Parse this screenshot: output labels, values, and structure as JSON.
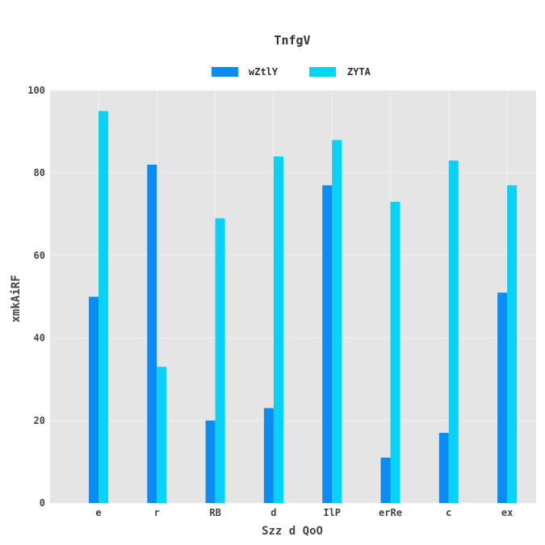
{
  "chart_data": {
    "type": "bar",
    "title": "TnfgV",
    "xlabel": "Szz d QoO",
    "ylabel": "xmkAiRF",
    "categories": [
      "e",
      "r",
      "RB",
      "d",
      "IlP",
      "erRe",
      "c",
      "ex"
    ],
    "series": [
      {
        "name": "wZtlY",
        "color": "#0a8cf5",
        "values": [
          50,
          82,
          20,
          23,
          77,
          11,
          17,
          51
        ]
      },
      {
        "name": "ZYTA",
        "color": "#07d2f7",
        "values": [
          95,
          33,
          69,
          84,
          88,
          73,
          83,
          77
        ]
      }
    ],
    "ylim": [
      0,
      100
    ],
    "yticks": [
      0,
      20,
      40,
      60,
      80,
      100
    ],
    "grid": true,
    "legend_position": "top-center",
    "plot_background": "#e5e5e5",
    "grid_color": "#f2f2f2"
  }
}
